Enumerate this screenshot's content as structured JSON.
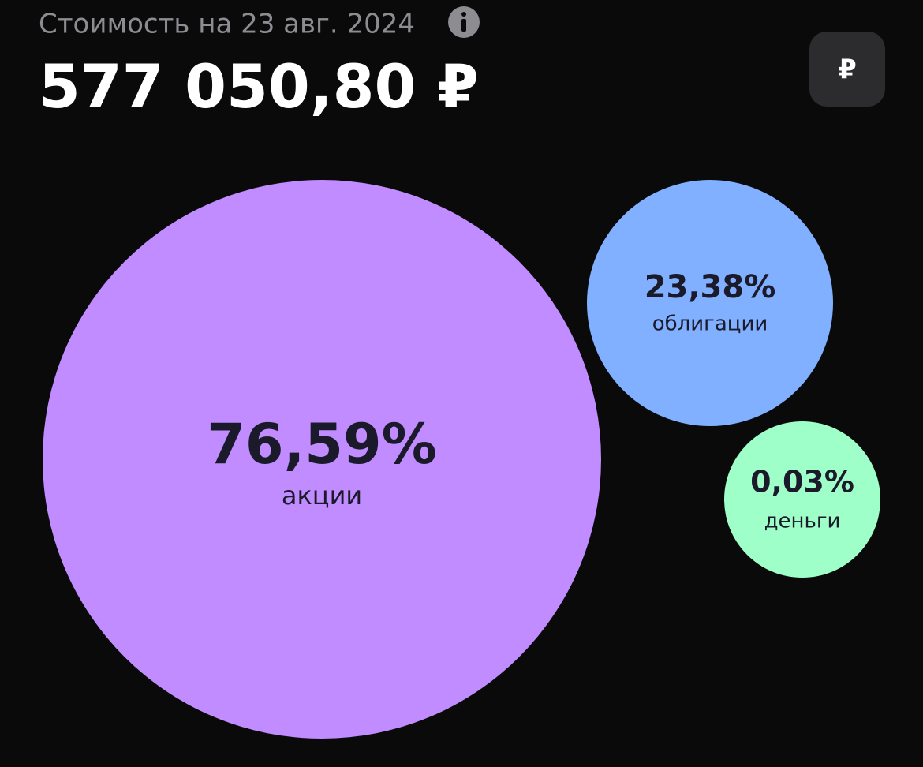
{
  "header": {
    "subtitle": "Стоимость на 23 авг. 2024",
    "total": "577 050,80 ₽",
    "currency_button": "₽"
  },
  "bubbles": [
    {
      "share": "76,59%",
      "name": "акции"
    },
    {
      "share": "23,38%",
      "name": "облигации"
    },
    {
      "share": "0,03%",
      "name": "деньги"
    }
  ]
}
